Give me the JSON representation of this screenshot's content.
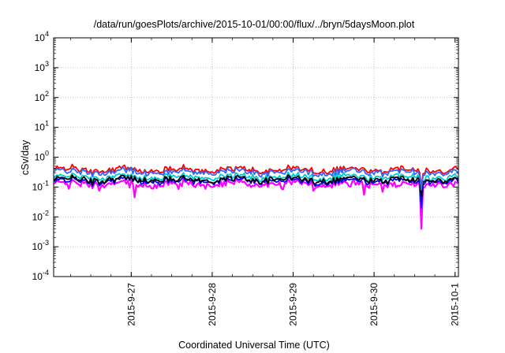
{
  "chart_data": {
    "type": "line",
    "title": "/data/run/goesPlots/archive/2015-10-01/00:00/flux/../bryn/5daysMoon.plot",
    "xlabel": "Coordinated Universal Time (UTC)",
    "ylabel": "cSv/day",
    "yscale": "log",
    "ylim": [
      0.0001,
      10000
    ],
    "yticks": [
      {
        "value": 0.0001,
        "mant": "10",
        "exp": "-4"
      },
      {
        "value": 0.001,
        "mant": "10",
        "exp": "-3"
      },
      {
        "value": 0.01,
        "mant": "10",
        "exp": "-2"
      },
      {
        "value": 0.1,
        "mant": "10",
        "exp": "-1"
      },
      {
        "value": 1,
        "mant": "10",
        "exp": "0"
      },
      {
        "value": 10,
        "mant": "10",
        "exp": "1"
      },
      {
        "value": 100,
        "mant": "10",
        "exp": "2"
      },
      {
        "value": 1000,
        "mant": "10",
        "exp": "3"
      },
      {
        "value": 10000,
        "mant": "10",
        "exp": "4"
      }
    ],
    "xrange": [
      "2015-09-26 01:00",
      "2015-10-01 01:00"
    ],
    "xticks": [
      {
        "value": "2015-09-27 00:00",
        "label": "2015-9-27"
      },
      {
        "value": "2015-09-28 00:00",
        "label": "2015-9-28"
      },
      {
        "value": "2015-09-29 00:00",
        "label": "2015-9-29"
      },
      {
        "value": "2015-09-30 00:00",
        "label": "2015-9-30"
      },
      {
        "value": "2015-10-01 00:00",
        "label": "2015-10-1"
      }
    ],
    "grid": true,
    "series": [
      {
        "color": "#ff00ff",
        "base": 0.13,
        "dips": [
          [
            "2015-09-27 01:00",
            0.045
          ],
          [
            "2015-09-29 21:00",
            0.055
          ],
          [
            "2015-09-30 14:00",
            0.004
          ]
        ]
      },
      {
        "color": "#0000ff",
        "base": 0.16,
        "dips": [
          [
            "2015-09-30 14:00",
            0.02
          ]
        ]
      },
      {
        "color": "#00cccc",
        "base": 0.22,
        "dips": [
          [
            "2015-09-30 14:00",
            0.05
          ]
        ]
      },
      {
        "color": "#000000",
        "base": 0.18,
        "dips": [
          [
            "2015-09-30 14:00",
            0.05
          ]
        ]
      },
      {
        "color": "#ff0000",
        "base": 0.38,
        "dips": [
          [
            "2015-09-30 14:00",
            0.1
          ]
        ]
      },
      {
        "color": "#3366ff",
        "base": 0.32,
        "dips": [
          [
            "2015-09-30 14:00",
            0.08
          ]
        ]
      }
    ]
  }
}
